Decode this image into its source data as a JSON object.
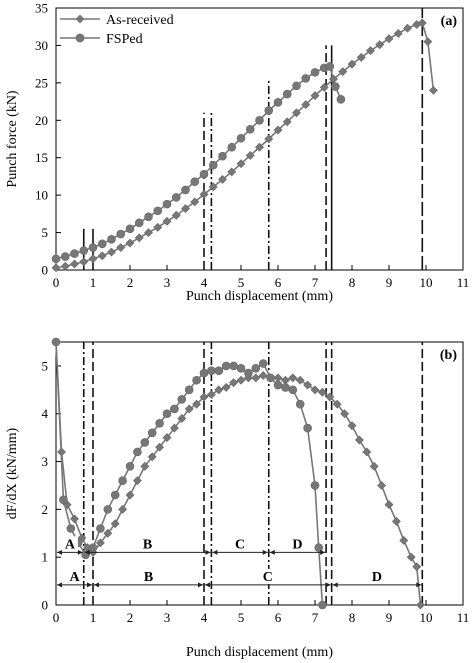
{
  "chart_data": [
    {
      "type": "line",
      "panel_label": "(a)",
      "xlabel": "Punch displacement (mm)",
      "ylabel": "Punch force (kN)",
      "xlim": [
        0,
        11
      ],
      "ylim": [
        0,
        35
      ],
      "xticks": [
        "0",
        "1",
        "2",
        "3",
        "4",
        "5",
        "6",
        "7",
        "8",
        "9",
        "10",
        "11"
      ],
      "yticks": [
        "0",
        "5",
        "10",
        "15",
        "20",
        "25",
        "30",
        "35"
      ],
      "legend_position": "top-left",
      "series": [
        {
          "name": "As-received",
          "marker": "diamond",
          "points": [
            [
              0,
              0.3
            ],
            [
              0.25,
              0.5
            ],
            [
              0.5,
              0.8
            ],
            [
              0.75,
              1.1
            ],
            [
              1,
              1.5
            ],
            [
              1.25,
              1.9
            ],
            [
              1.5,
              2.4
            ],
            [
              1.75,
              3.0
            ],
            [
              2,
              3.6
            ],
            [
              2.25,
              4.3
            ],
            [
              2.5,
              5.0
            ],
            [
              2.75,
              5.7
            ],
            [
              3,
              6.5
            ],
            [
              3.25,
              7.3
            ],
            [
              3.5,
              8.2
            ],
            [
              3.75,
              9.1
            ],
            [
              4,
              10.1
            ],
            [
              4.25,
              11.1
            ],
            [
              4.5,
              12.1
            ],
            [
              4.75,
              13.1
            ],
            [
              5,
              14.2
            ],
            [
              5.25,
              15.3
            ],
            [
              5.5,
              16.4
            ],
            [
              5.75,
              17.5
            ],
            [
              6,
              18.7
            ],
            [
              6.25,
              19.8
            ],
            [
              6.5,
              21.0
            ],
            [
              6.75,
              22.1
            ],
            [
              7,
              23.3
            ],
            [
              7.25,
              24.4
            ],
            [
              7.5,
              25.5
            ],
            [
              7.75,
              26.5
            ],
            [
              8,
              27.5
            ],
            [
              8.25,
              28.4
            ],
            [
              8.5,
              29.3
            ],
            [
              8.75,
              30.1
            ],
            [
              9,
              30.9
            ],
            [
              9.25,
              31.6
            ],
            [
              9.5,
              32.3
            ],
            [
              9.75,
              32.8
            ],
            [
              9.9,
              33.0
            ],
            [
              10.05,
              30.5
            ],
            [
              10.2,
              24.0
            ]
          ]
        },
        {
          "name": "FSPed",
          "marker": "circle",
          "points": [
            [
              0,
              1.5
            ],
            [
              0.25,
              1.8
            ],
            [
              0.5,
              2.2
            ],
            [
              0.75,
              2.6
            ],
            [
              1,
              3.0
            ],
            [
              1.25,
              3.5
            ],
            [
              1.5,
              4.1
            ],
            [
              1.75,
              4.8
            ],
            [
              2,
              5.5
            ],
            [
              2.25,
              6.3
            ],
            [
              2.5,
              7.1
            ],
            [
              2.75,
              7.9
            ],
            [
              3,
              8.8
            ],
            [
              3.25,
              9.7
            ],
            [
              3.5,
              10.7
            ],
            [
              3.75,
              11.8
            ],
            [
              4,
              12.8
            ],
            [
              4.25,
              14.0
            ],
            [
              4.5,
              15.2
            ],
            [
              4.75,
              16.4
            ],
            [
              5,
              17.6
            ],
            [
              5.25,
              18.8
            ],
            [
              5.5,
              20.0
            ],
            [
              5.75,
              21.3
            ],
            [
              6,
              22.4
            ],
            [
              6.25,
              23.5
            ],
            [
              6.5,
              24.6
            ],
            [
              6.75,
              25.6
            ],
            [
              7,
              26.4
            ],
            [
              7.25,
              27.0
            ],
            [
              7.4,
              27.2
            ],
            [
              7.55,
              24.5
            ],
            [
              7.7,
              22.8
            ]
          ]
        }
      ],
      "vertical_lines": [
        {
          "x": 0.75,
          "style": "solid",
          "ymax": 5.5
        },
        {
          "x": 1.0,
          "style": "solid",
          "ymax": 5.5
        },
        {
          "x": 4.0,
          "style": "dashed",
          "ymax": 21
        },
        {
          "x": 4.2,
          "style": "dashdot",
          "ymax": 21
        },
        {
          "x": 5.75,
          "style": "dashdot",
          "ymax": 25.5
        },
        {
          "x": 7.3,
          "style": "dashed",
          "ymax": 30
        },
        {
          "x": 7.45,
          "style": "solid",
          "ymax": 30
        },
        {
          "x": 9.9,
          "style": "longdash",
          "ymax": 35
        }
      ]
    },
    {
      "type": "line",
      "panel_label": "(b)",
      "xlabel": "Punch displacement (mm)",
      "ylabel": "dF/dX (kN/mm)",
      "xlim": [
        0,
        11
      ],
      "ylim": [
        0,
        5.5
      ],
      "xticks": [
        "0",
        "1",
        "2",
        "3",
        "4",
        "5",
        "6",
        "7",
        "8",
        "9",
        "10",
        "11"
      ],
      "yticks": [
        "0",
        "1",
        "2",
        "3",
        "4",
        "5"
      ],
      "series": [
        {
          "name": "As-received",
          "marker": "diamond",
          "points": [
            [
              0,
              5.5
            ],
            [
              0.15,
              3.2
            ],
            [
              0.3,
              2.1
            ],
            [
              0.5,
              1.8
            ],
            [
              0.7,
              1.4
            ],
            [
              0.85,
              1.2
            ],
            [
              1.0,
              1.1
            ],
            [
              1.2,
              1.3
            ],
            [
              1.4,
              1.5
            ],
            [
              1.6,
              1.7
            ],
            [
              1.8,
              2.0
            ],
            [
              2.0,
              2.3
            ],
            [
              2.2,
              2.6
            ],
            [
              2.4,
              2.9
            ],
            [
              2.6,
              3.1
            ],
            [
              2.8,
              3.3
            ],
            [
              3.0,
              3.5
            ],
            [
              3.2,
              3.7
            ],
            [
              3.4,
              3.9
            ],
            [
              3.6,
              4.1
            ],
            [
              3.8,
              4.2
            ],
            [
              4.0,
              4.35
            ],
            [
              4.2,
              4.4
            ],
            [
              4.4,
              4.5
            ],
            [
              4.6,
              4.55
            ],
            [
              4.8,
              4.65
            ],
            [
              5.0,
              4.7
            ],
            [
              5.2,
              4.75
            ],
            [
              5.4,
              4.75
            ],
            [
              5.6,
              4.8
            ],
            [
              5.8,
              4.75
            ],
            [
              6.0,
              4.75
            ],
            [
              6.2,
              4.7
            ],
            [
              6.4,
              4.75
            ],
            [
              6.6,
              4.7
            ],
            [
              6.8,
              4.6
            ],
            [
              7.0,
              4.5
            ],
            [
              7.2,
              4.45
            ],
            [
              7.4,
              4.35
            ],
            [
              7.6,
              4.2
            ],
            [
              7.8,
              4.0
            ],
            [
              8.0,
              3.75
            ],
            [
              8.2,
              3.45
            ],
            [
              8.4,
              3.2
            ],
            [
              8.6,
              2.9
            ],
            [
              8.8,
              2.5
            ],
            [
              9.0,
              2.1
            ],
            [
              9.2,
              1.75
            ],
            [
              9.4,
              1.35
            ],
            [
              9.6,
              1.0
            ],
            [
              9.75,
              0.8
            ],
            [
              9.85,
              0.0
            ]
          ]
        },
        {
          "name": "FSPed",
          "marker": "circle",
          "points": [
            [
              0,
              5.5
            ],
            [
              0.2,
              2.2
            ],
            [
              0.4,
              1.6
            ],
            [
              0.6,
              1.3
            ],
            [
              0.8,
              1.05
            ],
            [
              1.0,
              1.2
            ],
            [
              1.2,
              1.6
            ],
            [
              1.4,
              2.0
            ],
            [
              1.6,
              2.3
            ],
            [
              1.8,
              2.6
            ],
            [
              2.0,
              2.9
            ],
            [
              2.2,
              3.2
            ],
            [
              2.4,
              3.4
            ],
            [
              2.6,
              3.6
            ],
            [
              2.8,
              3.8
            ],
            [
              3.0,
              4.0
            ],
            [
              3.2,
              4.1
            ],
            [
              3.4,
              4.3
            ],
            [
              3.6,
              4.5
            ],
            [
              3.8,
              4.7
            ],
            [
              4.0,
              4.85
            ],
            [
              4.2,
              4.9
            ],
            [
              4.4,
              4.9
            ],
            [
              4.6,
              5.0
            ],
            [
              4.8,
              5.0
            ],
            [
              5.0,
              4.95
            ],
            [
              5.2,
              4.85
            ],
            [
              5.4,
              4.95
            ],
            [
              5.6,
              5.05
            ],
            [
              5.8,
              4.75
            ],
            [
              6.0,
              4.6
            ],
            [
              6.2,
              4.55
            ],
            [
              6.4,
              4.5
            ],
            [
              6.6,
              4.2
            ],
            [
              6.8,
              3.7
            ],
            [
              7.0,
              2.5
            ],
            [
              7.1,
              1.2
            ],
            [
              7.2,
              0.0
            ]
          ]
        }
      ],
      "vertical_lines": [
        {
          "x": 0.75,
          "style": "dashdot",
          "ymax": 5.5
        },
        {
          "x": 1.0,
          "style": "dashed",
          "ymax": 5.5
        },
        {
          "x": 4.0,
          "style": "dashed",
          "ymax": 5.5
        },
        {
          "x": 4.2,
          "style": "dashdot",
          "ymax": 5.5
        },
        {
          "x": 5.75,
          "style": "dashdot",
          "ymax": 5.5
        },
        {
          "x": 7.3,
          "style": "dashed",
          "ymax": 5.5
        },
        {
          "x": 7.45,
          "style": "dashed",
          "ymax": 5.5
        },
        {
          "x": 9.9,
          "style": "dashed",
          "ymax": 5.5
        }
      ],
      "regions_upper": [
        {
          "label": "A",
          "from": 0,
          "to": 0.75
        },
        {
          "label": "B",
          "from": 0.75,
          "to": 4.2
        },
        {
          "label": "C",
          "from": 4.2,
          "to": 5.75
        },
        {
          "label": "D",
          "from": 5.75,
          "to": 7.3
        }
      ],
      "regions_lower": [
        {
          "label": "A",
          "from": 0,
          "to": 1.0
        },
        {
          "label": "B",
          "from": 1.0,
          "to": 4.0
        },
        {
          "label": "C",
          "from": 4.0,
          "to": 7.45
        },
        {
          "label": "D",
          "from": 7.45,
          "to": 9.9
        }
      ],
      "regions_upper_y": 1.1,
      "regions_lower_y": 0.42
    }
  ]
}
